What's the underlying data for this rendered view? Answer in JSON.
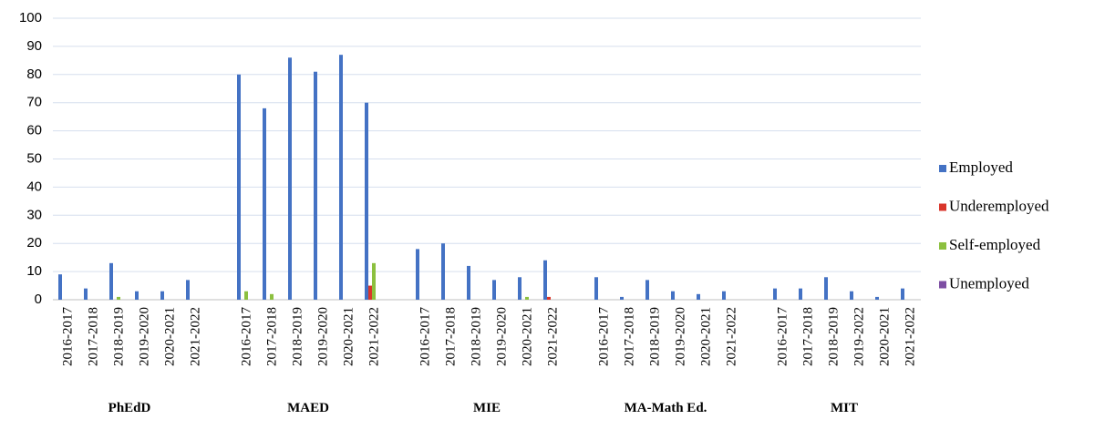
{
  "chart_data": {
    "type": "bar",
    "groups": [
      {
        "label": "PhEdD",
        "categories": [
          "2016-2017",
          "2017-2018",
          "2018-2019",
          "2019-2020",
          "2020-2021",
          "2021-2022"
        ]
      },
      {
        "label": "MAED",
        "categories": [
          "2016-2017",
          "2017-2018",
          "2018-2019",
          "2019-2020",
          "2020-2021",
          "2021-2022"
        ]
      },
      {
        "label": "MIE",
        "categories": [
          "2016-2017",
          "2017-2018",
          "2018-2019",
          "2019-2020",
          "2020-2021",
          "2021-2022"
        ]
      },
      {
        "label": "MA-Math Ed.",
        "categories": [
          "2016-2017",
          "2017-2018",
          "2018-2019",
          "2019-2020",
          "2020-2021",
          "2021-2022"
        ]
      },
      {
        "label": "MIT",
        "categories": [
          "2016-2017",
          "2017-2018",
          "2018-2019",
          "2019-2022",
          "2020-2021",
          "2021-2022"
        ]
      }
    ],
    "series": [
      {
        "name": "Employed",
        "color": "#4472c4",
        "values": [
          9,
          4,
          13,
          3,
          3,
          7,
          80,
          68,
          86,
          81,
          87,
          70,
          18,
          20,
          12,
          7,
          8,
          14,
          8,
          1,
          7,
          3,
          2,
          3,
          4,
          4,
          8,
          3,
          1,
          4
        ]
      },
      {
        "name": "Underemployed",
        "color": "#d9362b",
        "values": [
          0,
          0,
          0,
          0,
          0,
          0,
          0,
          0,
          0,
          0,
          0,
          5,
          0,
          0,
          0,
          0,
          0,
          1,
          0,
          0,
          0,
          0,
          0,
          0,
          0,
          0,
          0,
          0,
          0,
          0
        ]
      },
      {
        "name": "Self-employed",
        "color": "#8cc03f",
        "values": [
          0,
          0,
          1,
          0,
          0,
          0,
          3,
          2,
          0,
          0,
          0,
          13,
          0,
          0,
          0,
          0,
          1,
          0,
          0,
          0,
          0,
          0,
          0,
          0,
          0,
          0,
          0,
          0,
          0,
          0
        ]
      },
      {
        "name": "Unemployed",
        "color": "#7d4ea3",
        "values": [
          0,
          0,
          0,
          0,
          0,
          0,
          0,
          0,
          0,
          0,
          0,
          0,
          0,
          0,
          0,
          0,
          0,
          0,
          0,
          0,
          0,
          0,
          0,
          0,
          0,
          0,
          0,
          0,
          0,
          0
        ]
      }
    ],
    "ylim": [
      0,
      100
    ],
    "yticks": [
      0,
      10,
      20,
      30,
      40,
      50,
      60,
      70,
      80,
      90,
      100
    ],
    "grid": true,
    "legend": "right"
  }
}
